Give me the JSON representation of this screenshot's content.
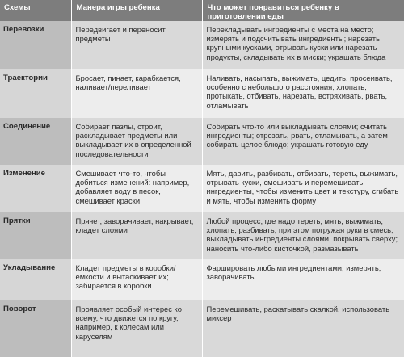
{
  "header": {
    "col1": "Схемы",
    "col2": "Манера игры ребенка",
    "col3": "Что может понравиться ребенку в приготовлении еды"
  },
  "rows": [
    {
      "scheme": "Перевозки",
      "manner": "Передвигает и переносит предметы",
      "cooking": "Перекладывать ингредиенты с места на место; измерять и подсчитывать ингредиенты; нарезать крупными кусками, отрывать куски или нарезать продукты, складывать их в миски; украшать блюда"
    },
    {
      "scheme": "Траектории",
      "manner": "Бросает, пинает, карабкается, наливает/переливает",
      "cooking": "Наливать, насыпать, выжимать, цедить, просеивать, особенно с небольшого расстояния; хлопать, протыкать, отбивать, нарезать, встряхивать, рвать, отламывать"
    },
    {
      "scheme": "Соединение",
      "manner": "Собирает пазлы, строит, раскладывает предметы или выкладывает их в определенной последовательности",
      "cooking": "Собирать что-то или выкладывать слоями; считать ингредиенты; отрезать, рвать, отламывать, а затем собирать целое блюдо; украшать готовую еду"
    },
    {
      "scheme": "Изменение",
      "manner": "Смешивает что-то, чтобы добиться изменений: например, добавляет воду в песок, смешивает краски",
      "cooking": "Мять, давить, разбивать, отбивать, тереть, выжимать, отрывать куски, смешивать и перемешивать ингредиенты, чтобы изменить цвет и текстуру, сгибать и мять, чтобы изменить форму"
    },
    {
      "scheme": "Прятки",
      "manner": "Прячет, заворачивает, накрывает, кладет слоями",
      "cooking": "Любой процесс, где надо тереть, мять, выжимать, хлопать, разбивать, при этом погружая руки в смесь; выкладывать ингредиенты слоями, покрывать сверху; наносить что-либо кисточкой, размазывать"
    },
    {
      "scheme": "Укладывание",
      "manner": "Кладет предметы в коробки/емкости и вытаскивает их; забирается в коробки",
      "cooking": "Фаршировать любыми ингредиентами, измерять, заворачивать"
    },
    {
      "scheme": "Поворот",
      "manner": "Проявляет особый интерес ко всему, что движется по кругу, например, к колесам или каруселям",
      "cooking": "Перемешивать, раскатывать скалкой, использовать миксер"
    }
  ]
}
